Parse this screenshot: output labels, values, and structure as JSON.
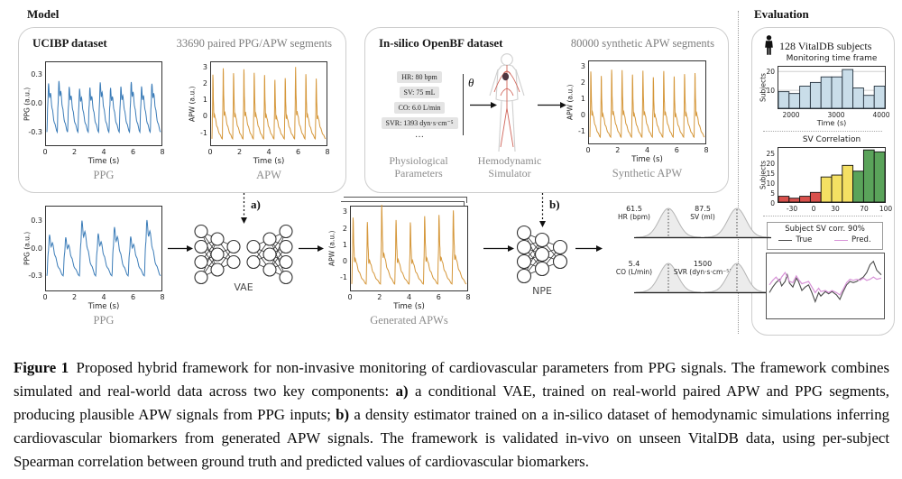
{
  "model_section": {
    "label": "Model",
    "ucibp": {
      "title": "UCIBP dataset",
      "subtitle": "33690 paired PPG/APW segments"
    },
    "insilico": {
      "title": "In-silico OpenBF dataset",
      "subtitle": "80000 synthetic APW segments",
      "params": [
        "HR: 80 bpm",
        "SV: 75 mL",
        "CO: 6.0 L/min",
        "SVR: 1393 dyn·s·cm⁻⁵"
      ],
      "params_more": "…",
      "theta": "θ",
      "params_label": "Physiological Parameters",
      "simulator_label": "Hemodynamic Simulator"
    },
    "pipeline": {
      "vae_label": "VAE",
      "npe_label": "NPE",
      "step_a": "a)",
      "step_b": "b)"
    },
    "distributions": [
      {
        "value": "61.5",
        "label": "HR (bpm)"
      },
      {
        "value": "87.5",
        "label": "SV (ml)"
      },
      {
        "value": "5.4",
        "label": "CO (L/min)"
      },
      {
        "value": "1500",
        "label": "SVR (dyn·s·cm⁻⁵)"
      }
    ]
  },
  "evaluation_section": {
    "label": "Evaluation",
    "subjects_label": "128 VitalDB subjects",
    "legend": {
      "title": "Subject SV corr. 90%",
      "series": [
        {
          "label": "True",
          "color": "#4a4a4a"
        },
        {
          "label": "Pred.",
          "color": "#d893d8"
        }
      ]
    }
  },
  "chart_data": [
    {
      "id": "ppg_ucibp",
      "type": "line",
      "waveform": "ppg",
      "n_beats": 11,
      "seed": 11,
      "color": "#3b7cb8",
      "xlabel": "Time (s)",
      "ylabel": "PPG (a.u.)",
      "caption": "PPG",
      "xticks": [
        "0",
        "2",
        "4",
        "6",
        "8"
      ],
      "yticks": [
        "0.3",
        "0.0",
        "-0.3"
      ],
      "xlim": [
        0,
        8
      ],
      "ylim": [
        -0.44,
        0.44
      ]
    },
    {
      "id": "apw_ucibp",
      "type": "line",
      "waveform": "apw",
      "n_beats": 11,
      "seed": 5,
      "color": "#d5973a",
      "xlabel": "Time (s)",
      "ylabel": "APW (a.u.)",
      "caption": "APW",
      "xticks": [
        "0",
        "2",
        "4",
        "6",
        "8"
      ],
      "yticks": [
        "3",
        "2",
        "1",
        "0",
        "-1"
      ],
      "xlim": [
        0,
        8
      ],
      "ylim": [
        -1.8,
        3.4
      ]
    },
    {
      "id": "apw_synthetic",
      "type": "line",
      "waveform": "apw",
      "n_beats": 11,
      "seed": 9,
      "color": "#d5973a",
      "xlabel": "Time (s)",
      "ylabel": "APW (a.u.)",
      "caption": "Synthetic APW",
      "xticks": [
        "0",
        "2",
        "4",
        "6",
        "8"
      ],
      "yticks": [
        "3",
        "2",
        "1",
        "0",
        "-1"
      ],
      "xlim": [
        0,
        8
      ],
      "ylim": [
        -1.8,
        3.4
      ]
    },
    {
      "id": "ppg_input",
      "type": "line",
      "waveform": "ppg",
      "n_beats": 7,
      "seed": 3,
      "jitter": true,
      "color": "#3b7cb8",
      "xlabel": "Time (s)",
      "ylabel": "PPG (a.u.)",
      "caption": "PPG",
      "xticks": [
        "0",
        "2",
        "4",
        "6",
        "8"
      ],
      "yticks": [
        "0.3",
        "0.0",
        "-0.3"
      ],
      "xlim": [
        0,
        8
      ],
      "ylim": [
        -0.46,
        0.46
      ]
    },
    {
      "id": "apw_generated",
      "type": "line",
      "waveform": "apw",
      "n_beats": 8,
      "seed": 8,
      "jitter": true,
      "color": "#d5973a",
      "xlabel": "Time (s)",
      "ylabel": "APW (a.u.)",
      "caption": "Generated APWs",
      "xticks": [
        "0",
        "2",
        "4",
        "6",
        "8"
      ],
      "yticks": [
        "3",
        "2",
        "1",
        "0",
        "-1"
      ],
      "xlim": [
        0,
        8
      ],
      "ylim": [
        -1.8,
        3.4
      ]
    },
    {
      "id": "monitoring_hist",
      "type": "bar",
      "title": "Monitoring time frame",
      "xlabel": "Time (s)",
      "ylabel": "Subjects",
      "values": [
        9,
        8,
        12,
        14,
        17,
        17,
        21,
        11,
        7,
        12
      ],
      "xlim": [
        1700,
        4100
      ],
      "xticks": [
        "2000",
        "3000",
        "4000"
      ],
      "yticks": [
        "10",
        "20"
      ],
      "ylim": [
        0,
        23
      ],
      "gridlines": [
        10,
        20
      ],
      "bar_color": "#c9dde9",
      "edge_color": "#24313d"
    },
    {
      "id": "sv_corr_hist",
      "type": "bar",
      "title": "SV Correlation",
      "ylabel": "Subjects",
      "values": [
        3,
        2,
        3,
        5,
        13,
        14,
        19,
        16,
        27,
        26
      ],
      "bar_colors": [
        "#d9504c",
        "#d9504c",
        "#d9504c",
        "#d9504c",
        "#f4e063",
        "#f4e063",
        "#f4e063",
        "#5aa35a",
        "#5aa35a",
        "#5aa35a"
      ],
      "xlim": [
        -50,
        100
      ],
      "xticks": [
        "-30",
        "0",
        "30",
        "70",
        "100"
      ],
      "yticks": [
        "0",
        "5",
        "10",
        "15",
        "20",
        "25"
      ],
      "ylim": [
        0,
        28.5
      ],
      "edge_color": "#111111"
    },
    {
      "id": "subject_line",
      "type": "line",
      "series": [
        {
          "name": "True",
          "color": "#4a4a4a"
        },
        {
          "name": "Pred.",
          "color": "#d893d8"
        }
      ]
    }
  ],
  "caption": {
    "segments": [
      {
        "text": "Figure 1",
        "bold": true
      },
      {
        "text": " Proposed hybrid framework for non-invasive monitoring of cardiovascular parameters from PPG signals. The framework combines simulated and real-world data across two key components: ",
        "bold": false
      },
      {
        "text": "a)",
        "bold": true
      },
      {
        "text": " a conditional VAE, trained on real-world paired APW and PPG segments, producing plausible APW signals from PPG inputs; ",
        "bold": false
      },
      {
        "text": "b)",
        "bold": true
      },
      {
        "text": " a density estimator trained on a in-silico dataset of hemodynamic simulations inferring cardiovascular biomarkers from generated APW signals. The framework is validated in-vivo on unseen VitalDB data, using per-subject Spearman correlation between ground truth and predicted values of cardiovascular biomarkers.",
        "bold": false
      }
    ]
  }
}
